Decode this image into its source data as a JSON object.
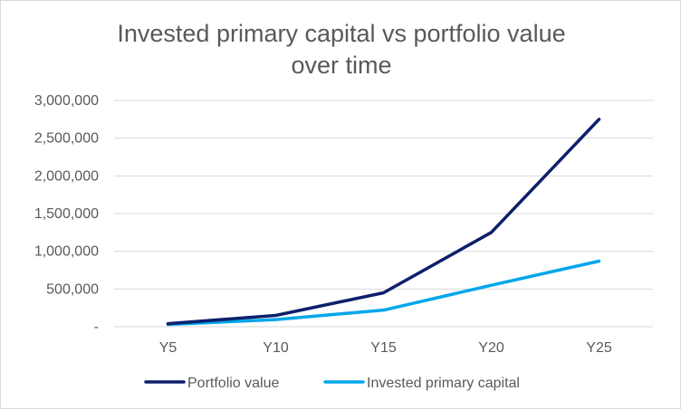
{
  "chart_data": {
    "type": "line",
    "title": "Invested primary capital vs portfolio value over time",
    "title_lines": [
      "Invested primary capital vs portfolio value",
      "over time"
    ],
    "categories": [
      "Y5",
      "Y10",
      "Y15",
      "Y20",
      "Y25"
    ],
    "y_ticks": [
      0,
      500000,
      1000000,
      1500000,
      2000000,
      2500000,
      3000000
    ],
    "y_tick_labels": [
      "-",
      "500,000",
      "1,000,000",
      "1,500,000",
      "2,000,000",
      "2,500,000",
      "3,000,000"
    ],
    "ylim": [
      0,
      3000000
    ],
    "xlabel": "",
    "ylabel": "",
    "grid": true,
    "legend_position": "bottom",
    "series": [
      {
        "name": "Portfolio value",
        "color": "#0d1f6b",
        "values": [
          40000,
          150000,
          450000,
          1250000,
          2750000
        ]
      },
      {
        "name": "Invested primary capital",
        "color": "#00a6eb",
        "values": [
          30000,
          95000,
          220000,
          550000,
          870000
        ]
      }
    ]
  }
}
